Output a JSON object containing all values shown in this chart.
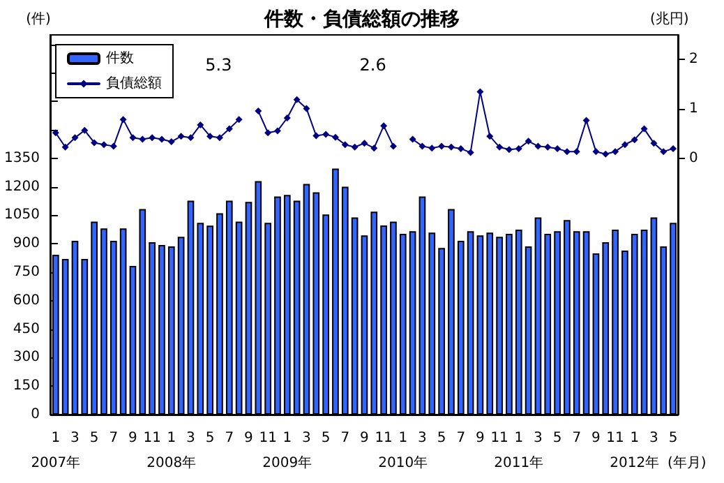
{
  "chart_data": {
    "type": "bar",
    "title": "件数・負債総額の推移",
    "ylabel": "(件)",
    "y2label": "(兆円)",
    "xlabel": "(年月)",
    "categories": [
      "1\n2007年",
      null,
      "3",
      null,
      "5",
      null,
      "7",
      null,
      "9",
      null,
      "11",
      null,
      "1\n2008年",
      null,
      "3",
      null,
      "5",
      null,
      "7",
      null,
      "9",
      null,
      "11",
      null,
      "1\n2009年",
      null,
      "3",
      null,
      "5",
      null,
      "7",
      null,
      "9",
      null,
      "11",
      null,
      "1\n2010年",
      null,
      "3",
      null,
      "5",
      null,
      "7",
      null,
      "9",
      null,
      "11",
      null,
      "1\n2011年",
      null,
      "3",
      null,
      "5",
      null,
      "7",
      null,
      "9",
      null,
      "11",
      null,
      "1\n2012年",
      null,
      "3",
      null,
      "5"
    ],
    "series": [
      {
        "name": "件数",
        "color": "#3366ff",
        "values": [
          842,
          820,
          915,
          820,
          1017,
          981,
          915,
          981,
          783,
          1083,
          908,
          893,
          886,
          937,
          1127,
          1010,
          995,
          1061,
          1127,
          1017,
          1120,
          1230,
          1010,
          1149,
          1157,
          1127,
          1215,
          1171,
          1054,
          1296,
          1200,
          1039,
          944,
          1069,
          996,
          1017,
          952,
          966,
          1149,
          959,
          878,
          1083,
          915,
          966,
          944,
          959,
          937,
          952,
          974,
          886,
          1039,
          952,
          966,
          1025,
          966,
          966,
          849,
          908,
          974,
          864,
          952,
          974,
          1039,
          886,
          1010
        ]
      },
      {
        "name": "負債総額",
        "type": "line",
        "axis": "y2",
        "color": "#000080",
        "values": [
          0.52,
          0.23,
          0.42,
          0.57,
          0.32,
          0.28,
          0.25,
          0.79,
          0.42,
          0.39,
          0.42,
          0.39,
          0.34,
          0.45,
          0.42,
          0.68,
          0.45,
          0.42,
          0.6,
          0.79,
          null,
          0.96,
          0.52,
          0.56,
          0.82,
          1.19,
          1.01,
          0.46,
          0.49,
          0.43,
          0.28,
          0.23,
          0.31,
          0.21,
          0.66,
          0.25,
          null,
          0.39,
          0.25,
          0.21,
          0.25,
          0.23,
          0.2,
          0.12,
          1.35,
          0.45,
          0.23,
          0.18,
          0.2,
          0.35,
          0.25,
          0.23,
          0.2,
          0.14,
          0.14,
          0.77,
          0.14,
          0.09,
          0.14,
          0.28,
          0.38,
          0.6,
          0.31,
          0.14,
          0.2
        ]
      }
    ],
    "annotations": [
      "5.3",
      "2.6"
    ],
    "ylim": [
      0,
      2000
    ],
    "yticks": [
      0,
      150,
      300,
      450,
      600,
      750,
      900,
      1050,
      1200,
      1350,
      {
        "value": 1500,
        "label": null
      },
      {
        "value": 1650,
        "label": null
      },
      {
        "value": 1800,
        "label": null
      },
      {
        "value": 1950,
        "label": null
      }
    ],
    "y2lim": [
      -5.18,
      2.5
    ],
    "y2ticks": [
      0,
      1,
      2
    ],
    "legend": "top left",
    "marker": "diamond",
    "line_style": "solid",
    "grid": false
  }
}
